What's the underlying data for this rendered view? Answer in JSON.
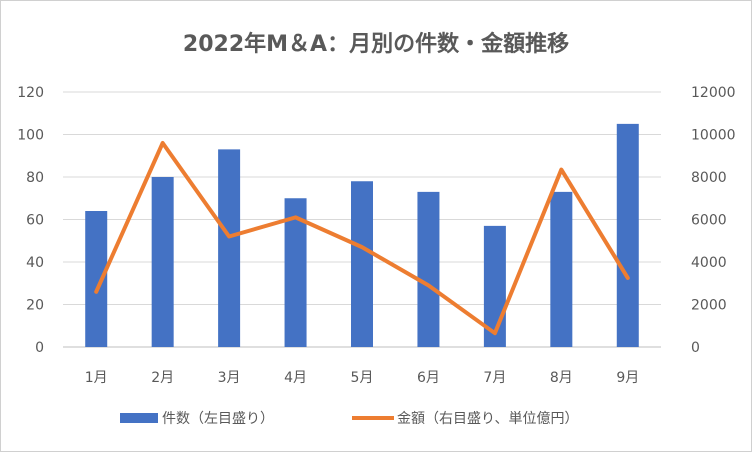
{
  "chart_data": {
    "type": "bar",
    "title": "2022年M＆A：月別の件数・金額推移",
    "categories": [
      "1月",
      "2月",
      "3月",
      "4月",
      "5月",
      "6月",
      "7月",
      "8月",
      "9月"
    ],
    "series": [
      {
        "name": "件数（左目盛り）",
        "type": "bar",
        "axis": "left",
        "color": "#4472C4",
        "values": [
          64,
          80,
          93,
          70,
          78,
          73,
          57,
          73,
          105
        ]
      },
      {
        "name": "金額（右目盛り、単位億円）",
        "type": "line",
        "axis": "right",
        "color": "#ED7D31",
        "values": [
          2600,
          9600,
          5200,
          6100,
          4700,
          2900,
          650,
          8350,
          3250
        ]
      }
    ],
    "y_left": {
      "min": 0,
      "max": 120,
      "ticks": [
        0,
        20,
        40,
        60,
        80,
        100,
        120
      ]
    },
    "y_right": {
      "min": 0,
      "max": 12000,
      "ticks": [
        0,
        2000,
        4000,
        6000,
        8000,
        10000,
        12000
      ]
    },
    "grid": true,
    "legend_position": "bottom"
  }
}
